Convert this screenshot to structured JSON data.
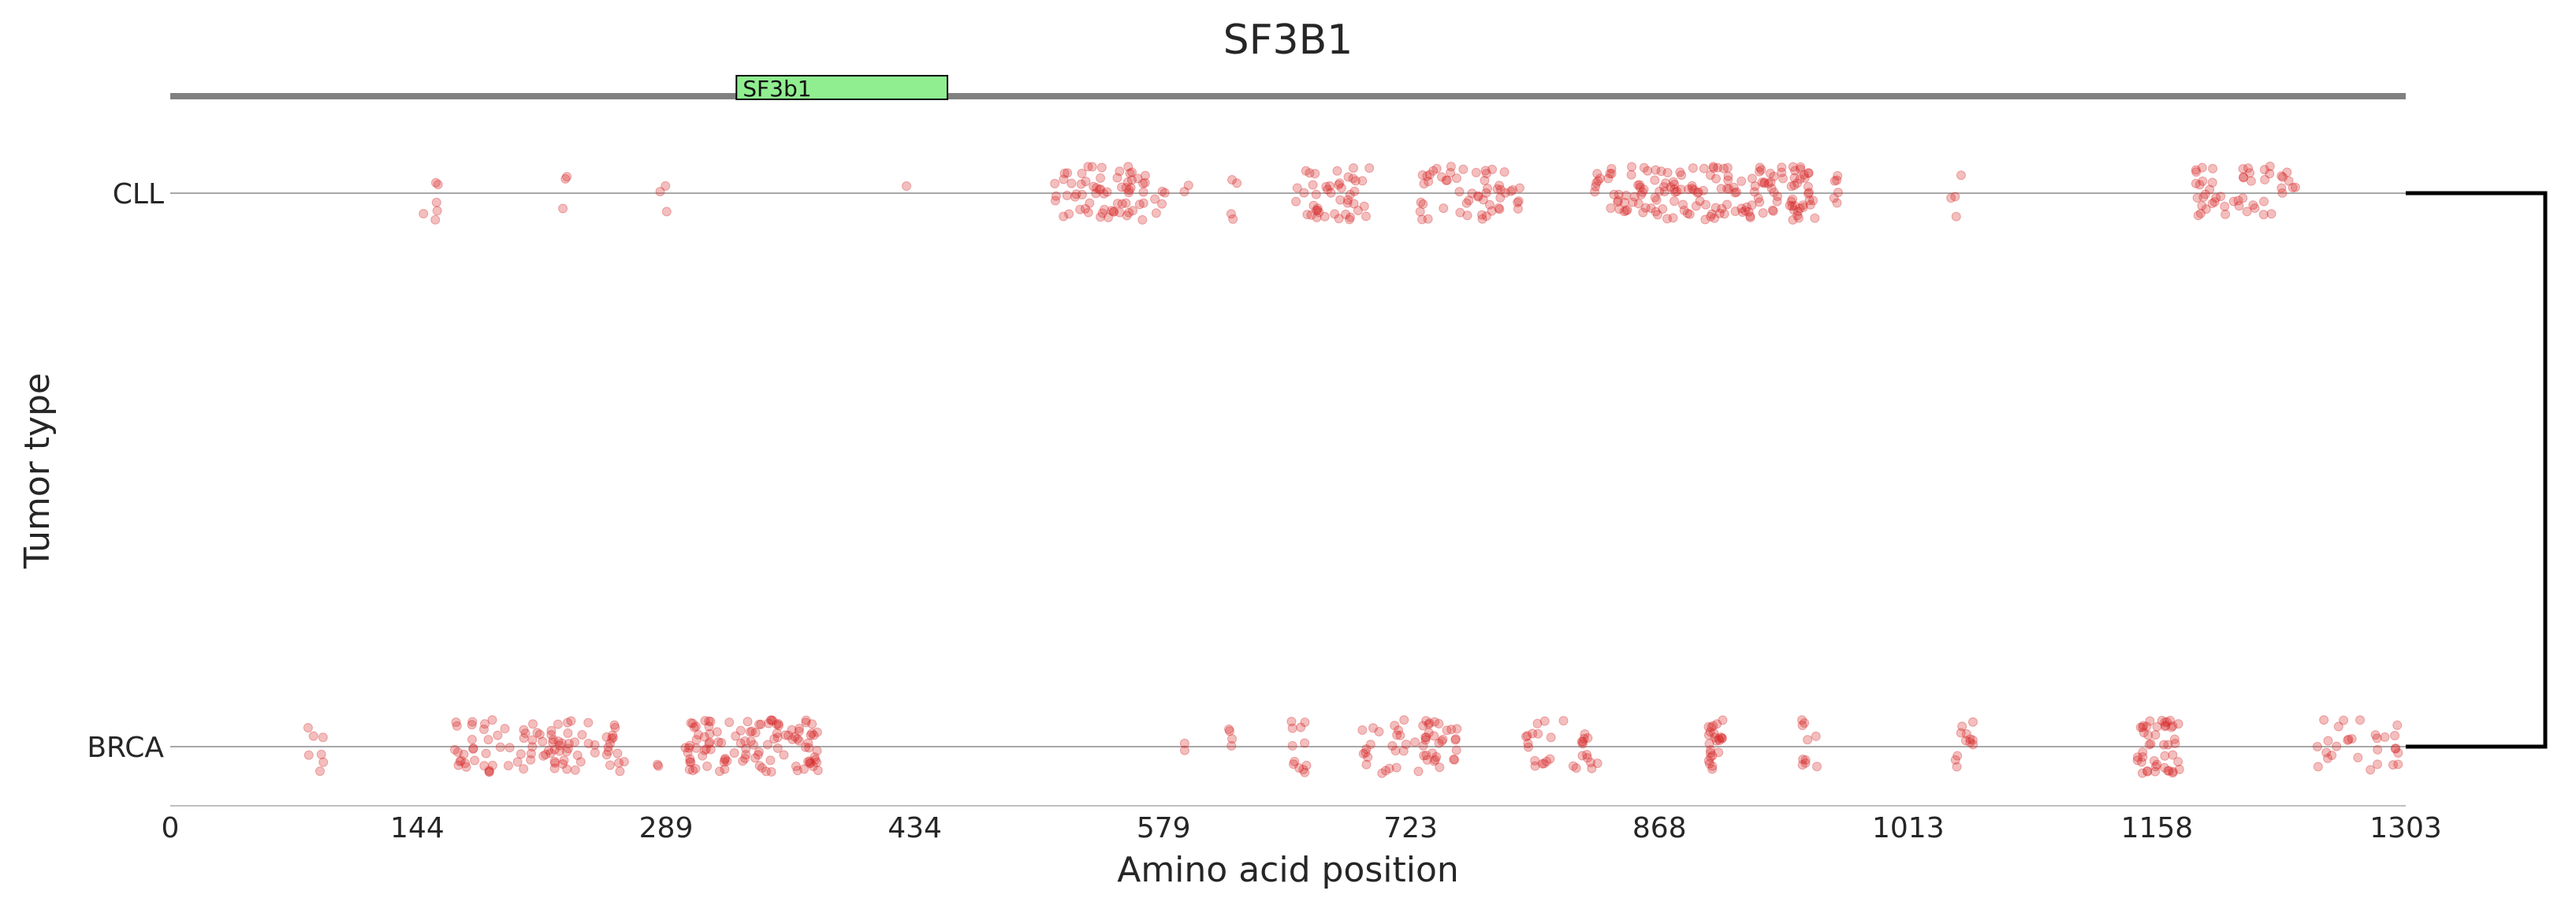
{
  "chart_data": {
    "type": "scatter",
    "title": "SF3B1",
    "xlabel": "Amino acid position",
    "ylabel": "Tumor type",
    "xlim": [
      0,
      1303
    ],
    "x_ticks": [
      0,
      144,
      289,
      434,
      579,
      723,
      868,
      1013,
      1158,
      1303
    ],
    "categories": [
      "CLL",
      "BRCA"
    ],
    "protein_domains": [
      {
        "name": "SF3b1",
        "start": 330,
        "end": 453
      }
    ],
    "clusters": {
      "CLL": [
        {
          "start": 145,
          "end": 160,
          "count": 6
        },
        {
          "start": 228,
          "end": 232,
          "count": 3
        },
        {
          "start": 285,
          "end": 290,
          "count": 3
        },
        {
          "start": 428,
          "end": 432,
          "count": 1
        },
        {
          "start": 515,
          "end": 580,
          "count": 70
        },
        {
          "start": 590,
          "end": 595,
          "count": 2
        },
        {
          "start": 618,
          "end": 622,
          "count": 4
        },
        {
          "start": 655,
          "end": 700,
          "count": 45
        },
        {
          "start": 727,
          "end": 787,
          "count": 55
        },
        {
          "start": 830,
          "end": 960,
          "count": 170
        },
        {
          "start": 968,
          "end": 975,
          "count": 6
        },
        {
          "start": 1035,
          "end": 1045,
          "count": 4
        },
        {
          "start": 1180,
          "end": 1240,
          "count": 50
        }
      ],
      "BRCA": [
        {
          "start": 78,
          "end": 90,
          "count": 7
        },
        {
          "start": 165,
          "end": 265,
          "count": 95
        },
        {
          "start": 283,
          "end": 287,
          "count": 2
        },
        {
          "start": 300,
          "end": 380,
          "count": 110
        },
        {
          "start": 590,
          "end": 593,
          "count": 2
        },
        {
          "start": 617,
          "end": 621,
          "count": 4
        },
        {
          "start": 652,
          "end": 663,
          "count": 12
        },
        {
          "start": 690,
          "end": 750,
          "count": 55
        },
        {
          "start": 790,
          "end": 805,
          "count": 15
        },
        {
          "start": 812,
          "end": 832,
          "count": 15
        },
        {
          "start": 895,
          "end": 905,
          "count": 25
        },
        {
          "start": 950,
          "end": 960,
          "count": 10
        },
        {
          "start": 1040,
          "end": 1052,
          "count": 12
        },
        {
          "start": 1145,
          "end": 1172,
          "count": 45
        },
        {
          "start": 1250,
          "end": 1300,
          "count": 28
        }
      ]
    },
    "marker_color": "#d62728",
    "backbone_color": "#808080",
    "domain_color": "#90ee90",
    "grid": false,
    "legend": "none"
  }
}
